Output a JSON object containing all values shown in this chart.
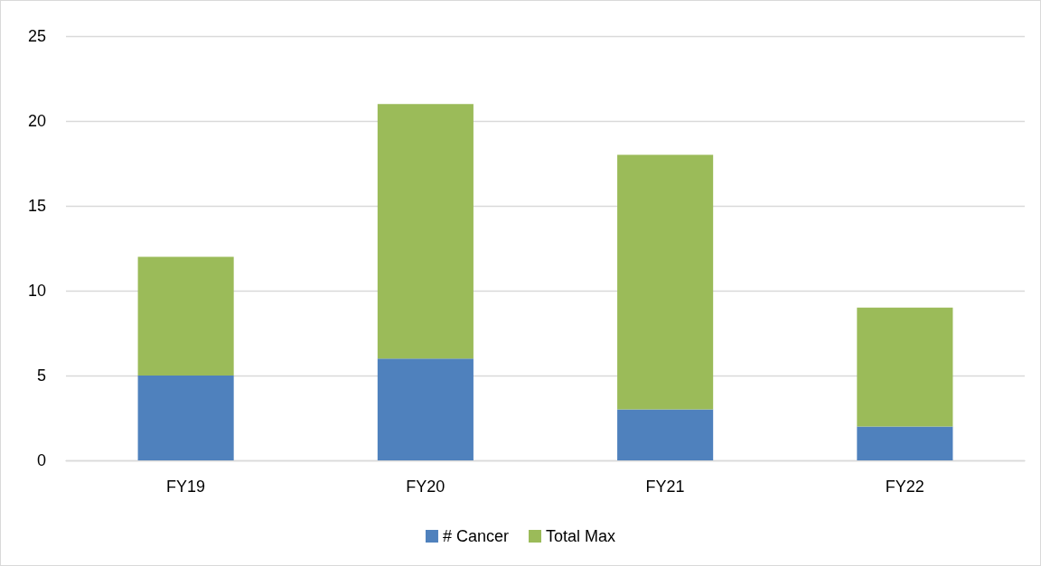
{
  "chart_data": {
    "type": "bar",
    "stacked": true,
    "categories": [
      "FY19",
      "FY20",
      "FY21",
      "FY22"
    ],
    "series": [
      {
        "name": "# Cancer",
        "color": "#4f81bd",
        "values": [
          5,
          6,
          3,
          2
        ]
      },
      {
        "name": "Total Max",
        "color": "#9bbb59",
        "values": [
          7,
          15,
          15,
          7
        ]
      }
    ],
    "ylim": [
      0,
      25
    ],
    "yticks": [
      0,
      5,
      10,
      15,
      20,
      25
    ],
    "grid": "y",
    "legend": "bottom"
  }
}
